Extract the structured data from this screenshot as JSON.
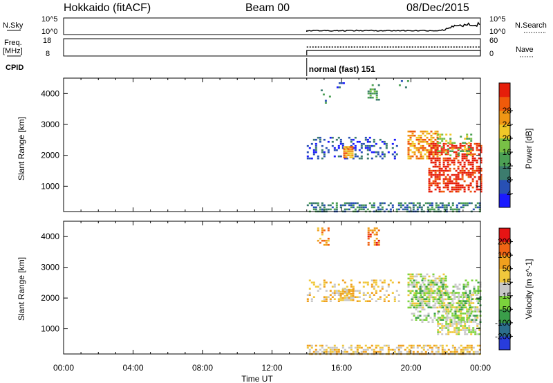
{
  "header": {
    "site": "Hokkaido (fitACF)",
    "beam": "Beam 00",
    "date": "08/Dec/2015"
  },
  "left_labels": {
    "nsky": "N.Sky",
    "freq_top": "Freq.",
    "freq_unit": "[MHz]",
    "cpid": "CPID"
  },
  "right_labels": {
    "nsearch": "N.Search",
    "nave": "Nave"
  },
  "strip_ticks": {
    "nsky_top": "10^5",
    "nsky_bottom": "10^0",
    "nsearch_top": "10^5",
    "nsearch_bottom": "10^0",
    "freq_top": "18",
    "freq_bottom": "8",
    "nave_top": "60",
    "nave_bottom": "0"
  },
  "cpid_text": "normal (fast) 151",
  "colors": {
    "power": [
      "#1a1aff",
      "#2850b4",
      "#3c7c6e",
      "#4ca055",
      "#78c046",
      "#f0c828",
      "#f09614",
      "#f05a0a",
      "#e61e0a"
    ],
    "velocity": [
      "#283cdc",
      "#2c6e8c",
      "#3a9e4a",
      "#7cd23c",
      "#c8c8c8",
      "#f0c83c",
      "#f0a01e",
      "#f06414",
      "#e61414"
    ],
    "ground_scatter": "#a0a0a0"
  },
  "chart_data": {
    "type": "heatmap",
    "time_axis": {
      "xlabel": "Time UT",
      "range_hours": [
        0,
        24
      ],
      "ticks": [
        0,
        4,
        8,
        12,
        16,
        20,
        24
      ],
      "tick_labels": [
        "00:00",
        "04:00",
        "08:00",
        "12:00",
        "16:00",
        "20:00",
        "00:00"
      ]
    },
    "range_axis": {
      "ylabel": "Slant Range [km]",
      "ylim": [
        180,
        4500
      ],
      "ticks": [
        1000,
        2000,
        3000,
        4000
      ],
      "tick_labels": [
        "1000",
        "2000",
        "3000",
        "4000"
      ]
    },
    "data_start_hour": 14,
    "panels": [
      {
        "name": "power",
        "colorbar_label": "Power [dB]",
        "colorbar_ticks": [
          "4",
          "8",
          "12",
          "16",
          "20",
          "24",
          "28"
        ],
        "regions": [
          {
            "t": [
              14.0,
              24.0
            ],
            "r": [
              200,
              480
            ],
            "density": 0.55,
            "level": 2
          },
          {
            "t": [
              14.8,
              15.3
            ],
            "r": [
              3700,
              4200
            ],
            "density": 0.2,
            "level": 2
          },
          {
            "t": [
              15.6,
              16.3
            ],
            "r": [
              4200,
              4500
            ],
            "density": 0.15,
            "level": 1
          },
          {
            "t": [
              17.5,
              18.1
            ],
            "r": [
              3800,
              4300
            ],
            "density": 0.35,
            "level": 3
          },
          {
            "t": [
              19.3,
              19.8
            ],
            "r": [
              4200,
              4500
            ],
            "density": 0.15,
            "level": 2
          },
          {
            "t": [
              14.0,
              19.3
            ],
            "r": [
              1900,
              2600
            ],
            "density": 0.28,
            "level": 1
          },
          {
            "t": [
              16.1,
              16.6
            ],
            "r": [
              1950,
              2300
            ],
            "density": 0.9,
            "level": 6
          },
          {
            "t": [
              19.8,
              21.5
            ],
            "r": [
              1900,
              2800
            ],
            "density": 0.65,
            "level": 6
          },
          {
            "t": [
              21.0,
              24.0
            ],
            "r": [
              800,
              2400
            ],
            "density": 0.6,
            "level": 8
          },
          {
            "t": [
              21.5,
              23.5
            ],
            "r": [
              2000,
              2700
            ],
            "density": 0.3,
            "level": 4
          }
        ]
      },
      {
        "name": "velocity",
        "colorbar_label": "Velocity [m s^-1]",
        "colorbar_ticks": [
          "200",
          "100",
          "50",
          "15",
          "-15",
          "-50",
          "-100",
          "-200"
        ],
        "regions": [
          {
            "t": [
              14.0,
              24.0
            ],
            "r": [
              200,
              480
            ],
            "density": 0.55,
            "level": 5
          },
          {
            "t": [
              14.6,
              15.3
            ],
            "r": [
              3700,
              4300
            ],
            "density": 0.3,
            "level": 6
          },
          {
            "t": [
              17.5,
              18.1
            ],
            "r": [
              3700,
              4300
            ],
            "density": 0.5,
            "level": 7
          },
          {
            "t": [
              14.0,
              19.3
            ],
            "r": [
              1900,
              2600
            ],
            "density": 0.28,
            "level": 5
          },
          {
            "t": [
              15.9,
              16.7
            ],
            "r": [
              1900,
              2300
            ],
            "density": 0.85,
            "level": 5
          },
          {
            "t": [
              19.8,
              22.0
            ],
            "r": [
              1700,
              2800
            ],
            "density": 0.6,
            "level": 4
          },
          {
            "t": [
              21.5,
              24.0
            ],
            "r": [
              800,
              2200
            ],
            "density": 0.6,
            "level": 4
          },
          {
            "t": [
              20.0,
              24.0
            ],
            "r": [
              1200,
              2600
            ],
            "density": 0.3,
            "level": 3
          }
        ]
      }
    ]
  }
}
